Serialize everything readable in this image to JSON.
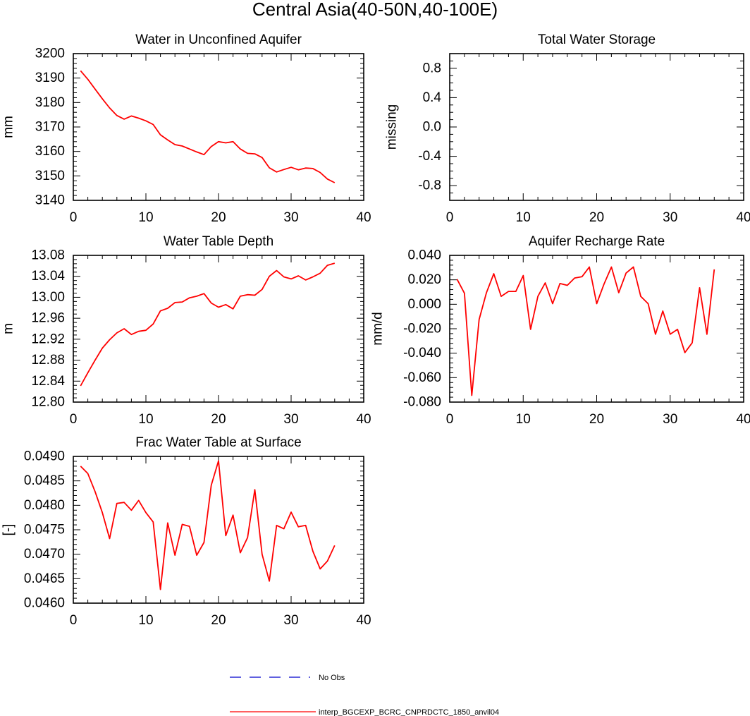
{
  "title": "Central Asia(40-50N,40-100E)",
  "colors": {
    "model": "#ff0000",
    "obs": "#0000cc",
    "axis": "#000000"
  },
  "legend": [
    {
      "label": "No Obs",
      "style": "dashed",
      "color": "#0000cc"
    },
    {
      "label": "interp_BGCEXP_BCRC_CNPRDCTC_1850_anvil04",
      "style": "solid",
      "color": "#ff0000"
    }
  ],
  "chart_data": [
    {
      "id": "aquifer",
      "type": "line",
      "title": "Water in Unconfined Aquifer",
      "ylabel": "mm",
      "xlim": [
        0,
        40
      ],
      "ylim": [
        3140,
        3200
      ],
      "xticks": [
        "0",
        "10",
        "20",
        "30",
        "40"
      ],
      "yticks": [
        "3140",
        "3150",
        "3160",
        "3170",
        "3180",
        "3190",
        "3200"
      ],
      "series": [
        {
          "name": "interp_BGCEXP_BCRC_CNPRDCTC_1850_anvil04",
          "x": [
            1,
            2,
            3,
            4,
            5,
            6,
            7,
            8,
            9,
            10,
            11,
            12,
            13,
            14,
            15,
            16,
            17,
            18,
            19,
            20,
            21,
            22,
            23,
            24,
            25,
            26,
            27,
            28,
            29,
            30,
            31,
            32,
            33,
            34,
            35,
            36
          ],
          "values": [
            3193,
            3189.5,
            3185.5,
            3181.5,
            3177.8,
            3174.7,
            3173.2,
            3174.5,
            3173.6,
            3172.5,
            3171,
            3166.8,
            3164.7,
            3162.8,
            3162.2,
            3161,
            3159.8,
            3158.7,
            3162,
            3164,
            3163.5,
            3164,
            3161,
            3159.2,
            3159,
            3157.5,
            3153.3,
            3151.6,
            3152.6,
            3153.5,
            3152.5,
            3153.2,
            3153,
            3151.4,
            3148.7,
            3147.2
          ]
        }
      ]
    },
    {
      "id": "tws",
      "type": "line",
      "title": "Total Water Storage",
      "ylabel": "missing",
      "xlim": [
        0,
        40
      ],
      "ylim": [
        -1,
        1
      ],
      "xticks": [
        "0",
        "10",
        "20",
        "30",
        "40"
      ],
      "yticks": [
        "-0.8",
        "-0.4",
        "0.0",
        "0.4",
        "0.8"
      ],
      "ytick_values": [
        -0.8,
        -0.4,
        0,
        0.4,
        0.8
      ],
      "series": []
    },
    {
      "id": "wtd",
      "type": "line",
      "title": "Water Table Depth",
      "ylabel": "m",
      "xlim": [
        0,
        40
      ],
      "ylim": [
        12.8,
        13.08
      ],
      "xticks": [
        "0",
        "10",
        "20",
        "30",
        "40"
      ],
      "yticks": [
        "12.80",
        "12.84",
        "12.88",
        "12.92",
        "12.96",
        "13.00",
        "13.04",
        "13.08"
      ],
      "series": [
        {
          "name": "interp_BGCEXP_BCRC_CNPRDCTC_1850_anvil04",
          "x": [
            1,
            2,
            3,
            4,
            5,
            6,
            7,
            8,
            9,
            10,
            11,
            12,
            13,
            14,
            15,
            16,
            17,
            18,
            19,
            20,
            21,
            22,
            23,
            24,
            25,
            26,
            27,
            28,
            29,
            30,
            31,
            32,
            33,
            34,
            35,
            36
          ],
          "values": [
            12.831,
            12.856,
            12.88,
            12.903,
            12.919,
            12.932,
            12.94,
            12.929,
            12.935,
            12.937,
            12.949,
            12.974,
            12.979,
            12.99,
            12.991,
            12.999,
            13.002,
            13.007,
            12.989,
            12.981,
            12.986,
            12.978,
            13.002,
            13.005,
            13.004,
            13.015,
            13.04,
            13.051,
            13.039,
            13.035,
            13.041,
            13.033,
            13.039,
            13.046,
            13.061,
            13.065
          ]
        }
      ]
    },
    {
      "id": "recharge",
      "type": "line",
      "title": "Aquifer Recharge Rate",
      "ylabel": "mm/d",
      "xlim": [
        0,
        40
      ],
      "ylim": [
        -0.08,
        0.04
      ],
      "xticks": [
        "0",
        "10",
        "20",
        "30",
        "40"
      ],
      "yticks": [
        "-0.080",
        "-0.060",
        "-0.040",
        "-0.020",
        "0.000",
        "0.020",
        "0.040"
      ],
      "series": [
        {
          "name": "interp_BGCEXP_BCRC_CNPRDCTC_1850_anvil04",
          "x": [
            1,
            2,
            3,
            4,
            5,
            6,
            7,
            8,
            9,
            10,
            11,
            12,
            13,
            14,
            15,
            16,
            17,
            18,
            19,
            20,
            21,
            22,
            23,
            24,
            25,
            26,
            27,
            28,
            29,
            30,
            31,
            32,
            33,
            34,
            35,
            36
          ],
          "values": [
            0.0205,
            0.009,
            -0.0745,
            -0.0125,
            0.0095,
            0.025,
            0.0065,
            0.0105,
            0.0105,
            0.0235,
            -0.0205,
            0.0065,
            0.0175,
            0.0005,
            0.017,
            0.0155,
            0.0215,
            0.0225,
            0.0305,
            0.0005,
            0.0165,
            0.0305,
            0.0095,
            0.0255,
            0.0305,
            0.0065,
            0.0005,
            -0.0245,
            -0.0055,
            -0.0245,
            -0.0205,
            -0.0395,
            -0.0315,
            0.0135,
            -0.0245,
            0.0285
          ]
        }
      ]
    },
    {
      "id": "frac",
      "type": "line",
      "title": "Frac Water Table at Surface",
      "ylabel": "[-]",
      "xlim": [
        0,
        40
      ],
      "ylim": [
        0.046,
        0.049
      ],
      "xticks": [
        "0",
        "10",
        "20",
        "30",
        "40"
      ],
      "yticks": [
        "0.0460",
        "0.0465",
        "0.0470",
        "0.0475",
        "0.0480",
        "0.0485",
        "0.0490"
      ],
      "series": [
        {
          "name": "interp_BGCEXP_BCRC_CNPRDCTC_1850_anvil04",
          "x": [
            1,
            2,
            3,
            4,
            5,
            6,
            7,
            8,
            9,
            10,
            11,
            12,
            13,
            14,
            15,
            16,
            17,
            18,
            19,
            20,
            21,
            22,
            23,
            24,
            25,
            26,
            27,
            28,
            29,
            30,
            31,
            32,
            33,
            34,
            35,
            36
          ],
          "values": [
            0.0488,
            0.04865,
            0.04828,
            0.04785,
            0.04732,
            0.04804,
            0.04806,
            0.0479,
            0.0481,
            0.04785,
            0.04766,
            0.04628,
            0.04764,
            0.04698,
            0.04761,
            0.04757,
            0.04698,
            0.04724,
            0.04841,
            0.04891,
            0.04738,
            0.0478,
            0.04703,
            0.04734,
            0.04832,
            0.047,
            0.04645,
            0.04759,
            0.04752,
            0.04786,
            0.04756,
            0.04759,
            0.04706,
            0.0467,
            0.04686,
            0.04718
          ]
        }
      ]
    }
  ]
}
